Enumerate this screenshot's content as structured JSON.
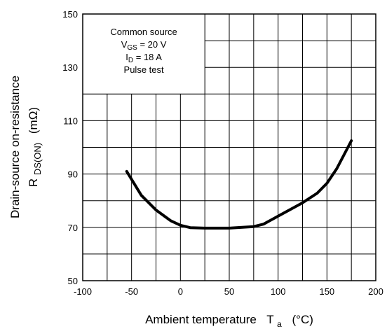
{
  "chart_data": {
    "type": "line",
    "title": "",
    "xlabel": {
      "text": "Ambient temperature",
      "symbol": "T",
      "subscript": "a",
      "unit": "(°C)"
    },
    "ylabel": {
      "text": "Drain-source on-resistance",
      "symbol": "R",
      "subscript": "DS(ON)",
      "unit": "(mΩ)"
    },
    "xlim": [
      -100,
      200
    ],
    "ylim": [
      50,
      150
    ],
    "x_ticks": [
      -100,
      -50,
      0,
      50,
      100,
      150,
      200
    ],
    "y_ticks": [
      50,
      70,
      90,
      110,
      130,
      150
    ],
    "x_tick_labels": [
      "-100",
      "-50",
      "0",
      "50",
      "100",
      "150",
      "200"
    ],
    "y_tick_labels": [
      "50",
      "70",
      "90",
      "110",
      "130",
      "150"
    ],
    "grid": true,
    "legend_box": {
      "placement": "top-left",
      "lines": [
        {
          "main": "Common source"
        },
        {
          "main": "V",
          "sub": "GS",
          "rest": " = 20 V"
        },
        {
          "main": "I",
          "sub": "D",
          "rest": " = 18 A"
        },
        {
          "main": "Pulse test"
        }
      ]
    },
    "series": [
      {
        "color": "#000000",
        "x": [
          -55,
          -40,
          -25,
          -10,
          0,
          10,
          25,
          50,
          75,
          85,
          100,
          125,
          140,
          150,
          160,
          175
        ],
        "y": [
          91,
          82,
          76.5,
          72.5,
          70.8,
          69.9,
          69.7,
          69.7,
          70.3,
          71.2,
          74.2,
          79.2,
          82.8,
          86.5,
          92,
          102.5
        ]
      }
    ]
  }
}
